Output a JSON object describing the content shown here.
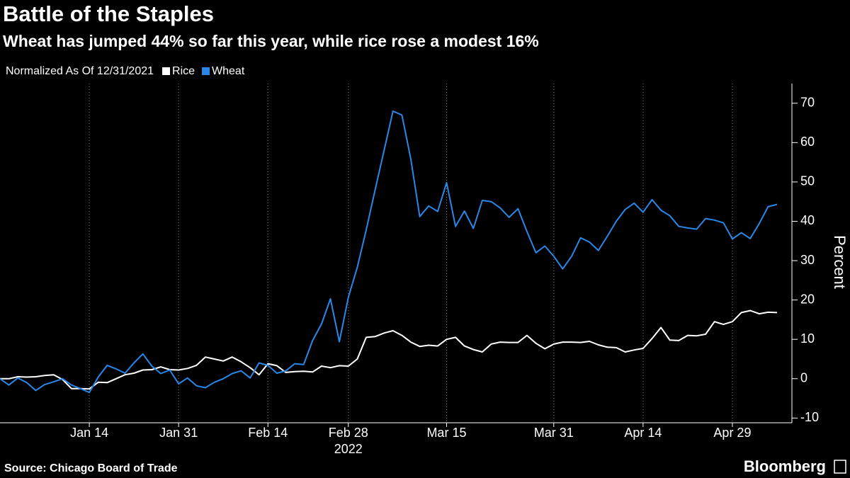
{
  "chart_data": {
    "type": "line",
    "title": "Battle of the Staples",
    "subtitle": "Wheat has jumped 44% so far this year, while rice rose a modest 16%",
    "legend_title": "Normalized As Of 12/31/2021",
    "y_axis_label": "Percent",
    "x_sublabel": "2022",
    "source": "Source: Chicago Board of Trade",
    "brand": "Bloomberg",
    "categories": [
      null,
      null,
      null,
      null,
      null,
      null,
      null,
      null,
      null,
      null,
      "Jan 14",
      null,
      null,
      null,
      null,
      null,
      null,
      null,
      null,
      null,
      "Jan 31",
      null,
      null,
      null,
      null,
      null,
      null,
      null,
      null,
      null,
      "Feb 14",
      null,
      null,
      null,
      null,
      null,
      null,
      null,
      null,
      "Feb 28",
      null,
      null,
      null,
      null,
      null,
      null,
      null,
      null,
      null,
      null,
      "Mar 15",
      null,
      null,
      null,
      null,
      null,
      null,
      null,
      null,
      null,
      null,
      null,
      "Mar 31",
      null,
      null,
      null,
      null,
      null,
      null,
      null,
      null,
      null,
      "Apr 14",
      null,
      null,
      null,
      null,
      null,
      null,
      null,
      null,
      null,
      "Apr 29",
      null,
      null,
      null,
      null,
      null
    ],
    "x_sublabel_index": 39,
    "series": [
      {
        "name": "Rice",
        "color": "#ffffff",
        "values": [
          0,
          0,
          0.5,
          0.4,
          0.5,
          0.8,
          1,
          -0.2,
          -2.5,
          -2.5,
          -2.6,
          -0.9,
          -1,
          0,
          1,
          1.4,
          2.2,
          2.3,
          3,
          2.3,
          2.2,
          2.6,
          3.4,
          5.5,
          5,
          4.5,
          5.5,
          4.3,
          2.8,
          1,
          3.8,
          3.3,
          1.6,
          1.8,
          1.9,
          1.7,
          3.2,
          2.8,
          3.3,
          3.2,
          5,
          10.5,
          10.7,
          11.6,
          12.2,
          11,
          9.3,
          8.2,
          8.5,
          8.3,
          10,
          10.5,
          8.3,
          7.4,
          6.8,
          8.8,
          9.3,
          9.2,
          9.2,
          11,
          9,
          7.6,
          8.8,
          9.3,
          9.3,
          9.2,
          9.5,
          8.6,
          8,
          7.9,
          6.8,
          7.3,
          7.7,
          10.2,
          13,
          9.8,
          9.7,
          11,
          10.9,
          11.3,
          14.5,
          13.8,
          14.5,
          16.8,
          17.3,
          16.5,
          16.9,
          16.8
        ]
      },
      {
        "name": "Wheat",
        "color": "#2a87e8",
        "values": [
          0,
          -1.6,
          0.2,
          -1,
          -3,
          -1.5,
          -0.8,
          0,
          -1.6,
          -2.5,
          -3.5,
          0.4,
          3.4,
          2.5,
          1.4,
          4,
          6.3,
          3.2,
          1.3,
          2.2,
          -1.3,
          0.2,
          -1.8,
          -2.3,
          -0.9,
          0,
          1.3,
          2,
          0.2,
          4,
          3.4,
          1.4,
          2,
          3.8,
          3.6,
          9.7,
          13.9,
          20.3,
          9.4,
          20.7,
          28.3,
          37.8,
          48,
          58,
          68,
          67,
          55.8,
          41.2,
          43.9,
          42.5,
          49.8,
          38.7,
          42.6,
          38.2,
          45.3,
          45,
          43.4,
          41,
          43.2,
          37.4,
          32,
          33.7,
          31.1,
          27.9,
          31.1,
          35.8,
          34.7,
          32.6,
          36.2,
          40,
          43,
          44.6,
          42.3,
          45.5,
          42.8,
          41.4,
          38.7,
          38.3,
          38,
          40.7,
          40.3,
          39.6,
          35.5,
          37.1,
          35.6,
          39.4,
          43.7,
          44.3
        ]
      }
    ],
    "ylim": [
      -11.2,
      75
    ],
    "yticks": [
      -10,
      0,
      10,
      20,
      30,
      40,
      50,
      60,
      70
    ],
    "grid": true
  }
}
